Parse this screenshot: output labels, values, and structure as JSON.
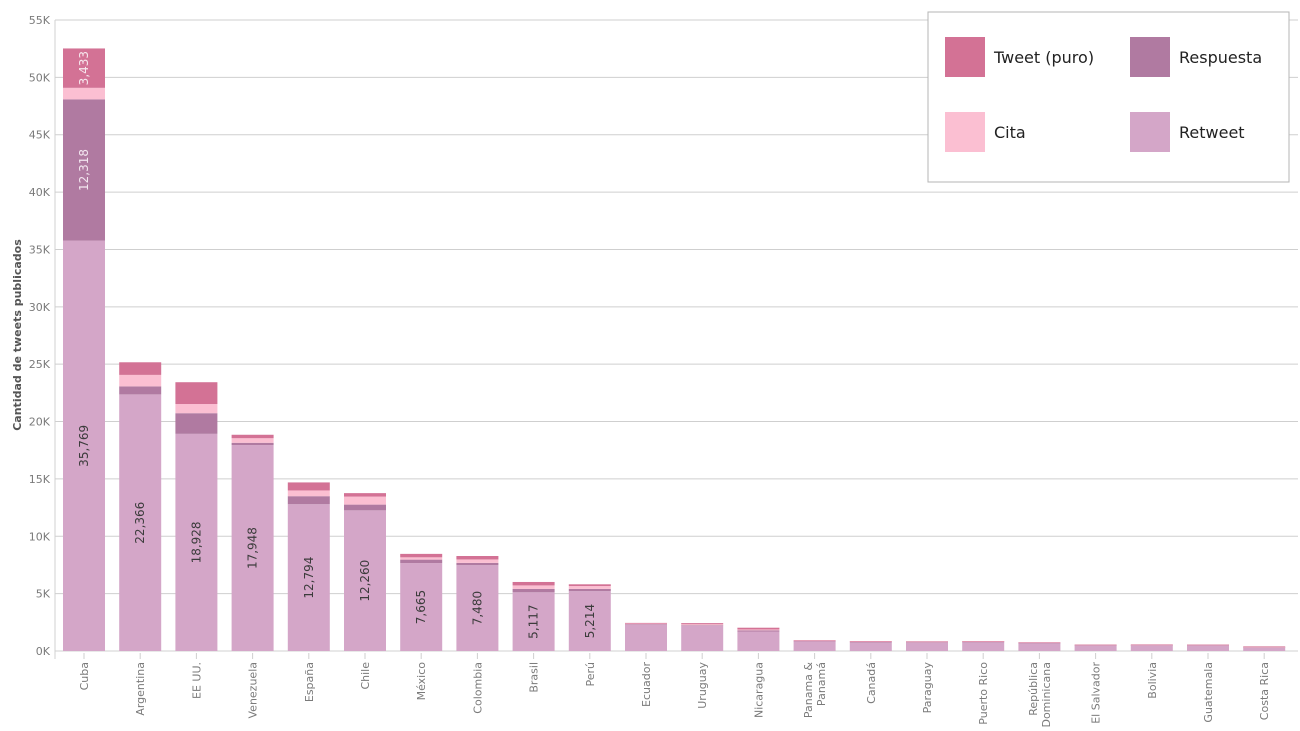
{
  "chart_data": {
    "type": "bar",
    "stacked": true,
    "ylabel": "Cantidad de tweets publicados",
    "ylim": [
      0,
      55000
    ],
    "yticks": [
      "0K",
      "5K",
      "10K",
      "15K",
      "20K",
      "25K",
      "30K",
      "35K",
      "40K",
      "45K",
      "50K",
      "55K"
    ],
    "grid": true,
    "legend_position": "top-right",
    "categories": [
      "Cuba",
      "Argentina",
      "EE UU.",
      "Venezuela",
      "España",
      "Chile",
      "México",
      "Colombia",
      "Brasil",
      "Perú",
      "Ecuador",
      "Uruguay",
      "Nicaragua",
      "Panama & Panamá",
      "Canadá",
      "Paraguay",
      "Puerto Rico",
      "República Dominicana",
      "El Salvador",
      "Bolivia",
      "Guatemala",
      "Costa Rica"
    ],
    "series": [
      {
        "name": "Retweet",
        "color": "#d4a6c8",
        "values": [
          35769,
          22366,
          18928,
          17948,
          12794,
          12260,
          7665,
          7480,
          5117,
          5214,
          2300,
          2200,
          1700,
          850,
          750,
          750,
          800,
          700,
          500,
          500,
          500,
          300
        ],
        "labels": [
          "35,769",
          "22,366",
          "18,928",
          "17,948",
          "12,794",
          "12,260",
          "7,665",
          "7,480",
          "5,117",
          "5,214",
          "",
          "",
          "",
          "",
          "",
          "",
          "",
          "",
          "",
          "",
          "",
          ""
        ]
      },
      {
        "name": "Respuesta",
        "color": "#b07aa1",
        "values": [
          12318,
          700,
          1800,
          200,
          700,
          500,
          300,
          200,
          300,
          200,
          50,
          50,
          100,
          30,
          50,
          30,
          20,
          20,
          20,
          20,
          20,
          20
        ],
        "labels": [
          "12,318",
          "",
          "",
          "",
          "",
          "",
          "",
          "",
          "",
          "",
          "",
          "",
          "",
          "",
          "",
          "",
          "",
          "",
          "",
          "",
          "",
          ""
        ]
      },
      {
        "name": "Cita",
        "color": "#fbbfd2",
        "values": [
          1000,
          1000,
          800,
          400,
          500,
          700,
          200,
          300,
          300,
          250,
          40,
          80,
          80,
          30,
          40,
          30,
          20,
          20,
          20,
          20,
          20,
          20
        ],
        "labels": [
          "",
          "",
          "",
          "",
          "",
          "",
          "",
          "",
          "",
          "",
          "",
          "",
          "",
          "",
          "",
          "",
          "",
          "",
          "",
          "",
          "",
          ""
        ]
      },
      {
        "name": "Tweet (puro)",
        "color": "#d37295",
        "values": [
          3433,
          1100,
          1900,
          300,
          700,
          300,
          300,
          300,
          300,
          150,
          60,
          100,
          150,
          30,
          30,
          30,
          20,
          20,
          20,
          30,
          20,
          60
        ],
        "labels": [
          "3,433",
          "",
          "",
          "",
          "",
          "",
          "",
          "",
          "",
          "",
          "",
          "",
          "",
          "",
          "",
          "",
          "",
          "",
          "",
          "",
          "",
          ""
        ]
      }
    ],
    "legend": [
      {
        "name": "Tweet (puro)",
        "color": "#d37295"
      },
      {
        "name": "Respuesta",
        "color": "#b07aa1"
      },
      {
        "name": "Cita",
        "color": "#fbbfd2"
      },
      {
        "name": "Retweet",
        "color": "#d4a6c8"
      }
    ]
  }
}
